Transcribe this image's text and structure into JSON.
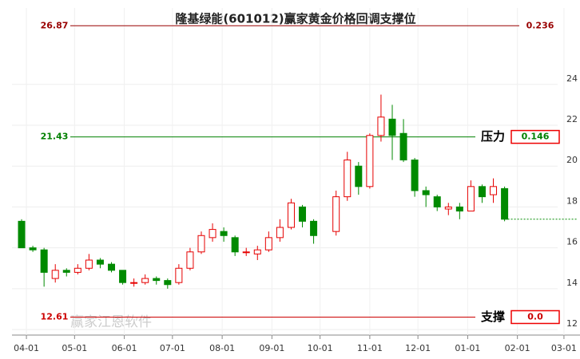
{
  "chart_data": {
    "type": "candlestick",
    "title": "隆基绿能(601012)赢家黄金价格回调支撑位",
    "watermark": "赢家江恩软件",
    "xlim": [
      "03-23",
      "03-11"
    ],
    "xticks": [
      "04-01",
      "05-01",
      "06-01",
      "07-01",
      "08-01",
      "09-01",
      "10-01",
      "11-01",
      "12-01",
      "01-01",
      "02-01",
      "03-01"
    ],
    "ylim": [
      11.73,
      27.74
    ],
    "yticks": [
      12,
      14,
      16,
      18,
      20,
      22,
      24
    ],
    "grid": true,
    "up_color": "#e60000",
    "down_color": "#008a00",
    "x": [
      "03-27",
      "04-03",
      "04-10",
      "04-17",
      "04-24",
      "05-01",
      "05-08",
      "05-15",
      "05-22",
      "05-29",
      "06-05",
      "06-12",
      "06-19",
      "06-26",
      "07-03",
      "07-10",
      "07-17",
      "07-24",
      "07-31",
      "08-07",
      "08-14",
      "08-21",
      "08-28",
      "09-04",
      "09-11",
      "09-18",
      "09-25",
      "10-09",
      "10-16",
      "10-23",
      "10-30",
      "11-06",
      "11-13",
      "11-20",
      "11-27",
      "12-04",
      "12-11",
      "12-18",
      "12-25",
      "01-01",
      "01-08",
      "01-15",
      "01-22"
    ],
    "open": [
      17.3,
      16.0,
      15.9,
      14.5,
      14.9,
      14.8,
      15.0,
      15.4,
      15.2,
      14.9,
      14.3,
      14.3,
      14.5,
      14.4,
      14.3,
      15.0,
      15.8,
      16.5,
      16.8,
      16.5,
      15.8,
      15.7,
      15.9,
      16.5,
      17.0,
      18.0,
      17.3,
      16.8,
      18.5,
      20.0,
      19.0,
      21.5,
      22.3,
      21.6,
      20.3,
      18.8,
      18.5,
      17.9,
      18.0,
      17.8,
      19.0,
      18.6,
      18.9
    ],
    "high": [
      17.4,
      16.1,
      16.0,
      15.2,
      15.0,
      15.2,
      15.7,
      15.5,
      15.3,
      14.9,
      14.5,
      14.7,
      14.6,
      14.5,
      15.2,
      16.0,
      16.8,
      17.2,
      17.0,
      16.6,
      16.0,
      16.1,
      16.8,
      17.4,
      18.4,
      18.1,
      17.4,
      18.8,
      20.7,
      20.2,
      21.6,
      23.5,
      23.0,
      22.3,
      20.4,
      19.0,
      18.6,
      18.2,
      18.2,
      19.3,
      19.1,
      19.4,
      19.0
    ],
    "low": [
      16.0,
      15.8,
      14.1,
      14.3,
      14.6,
      14.7,
      14.9,
      15.0,
      14.8,
      14.2,
      14.1,
      14.2,
      14.2,
      14.0,
      14.2,
      14.9,
      15.7,
      16.3,
      16.3,
      15.6,
      15.6,
      15.4,
      15.8,
      16.3,
      16.9,
      17.0,
      16.2,
      16.6,
      18.3,
      18.6,
      18.9,
      21.2,
      20.3,
      20.2,
      18.5,
      18.0,
      17.8,
      17.6,
      17.4,
      17.8,
      18.2,
      18.2,
      17.3
    ],
    "close": [
      16.0,
      15.9,
      14.8,
      14.9,
      14.8,
      15.0,
      15.4,
      15.2,
      14.9,
      14.3,
      14.3,
      14.5,
      14.4,
      14.2,
      15.0,
      15.8,
      16.6,
      16.9,
      16.6,
      15.8,
      15.8,
      15.9,
      16.5,
      17.0,
      18.2,
      17.3,
      16.6,
      18.5,
      20.3,
      19.0,
      21.5,
      22.4,
      21.5,
      20.3,
      18.8,
      18.6,
      18.0,
      18.0,
      17.8,
      19.0,
      18.5,
      19.0,
      17.4
    ],
    "levels": [
      {
        "value": 26.87,
        "ratio": 0.236,
        "color": "#990000"
      },
      {
        "value": 21.43,
        "ratio": 0.146,
        "tag": "压力",
        "color": "#008000"
      },
      {
        "value": 12.61,
        "ratio": {
          "value": 0,
          "label": "0.0"
        },
        "tag": "支撑",
        "color": "#cc0000"
      }
    ]
  }
}
